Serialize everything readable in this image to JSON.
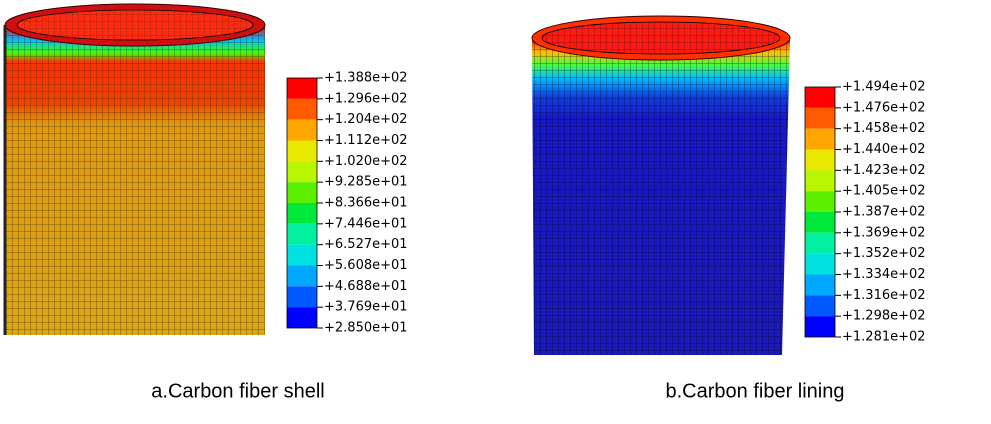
{
  "panels": [
    {
      "caption": "a.Carbon fiber shell",
      "legend": {
        "labels": [
          "+1.388e+02",
          "+1.296e+02",
          "+1.204e+02",
          "+1.112e+02",
          "+1.020e+02",
          "+9.285e+01",
          "+8.366e+01",
          "+7.446e+01",
          "+6.527e+01",
          "+5.608e+01",
          "+4.688e+01",
          "+3.769e+01",
          "+2.850e+01"
        ]
      }
    },
    {
      "caption": "b.Carbon fiber lining",
      "legend": {
        "labels": [
          "+1.494e+02",
          "+1.476e+02",
          "+1.458e+02",
          "+1.440e+02",
          "+1.423e+02",
          "+1.405e+02",
          "+1.387e+02",
          "+1.369e+02",
          "+1.352e+02",
          "+1.334e+02",
          "+1.316e+02",
          "+1.298e+02",
          "+1.281e+02"
        ]
      }
    }
  ],
  "legend_colors": [
    "#ff0000",
    "#ff5a00",
    "#ffa600",
    "#e8e800",
    "#b8f500",
    "#5cf000",
    "#00e83a",
    "#00f0a0",
    "#00e0e0",
    "#00a8ff",
    "#0058ff",
    "#0000ff"
  ]
}
